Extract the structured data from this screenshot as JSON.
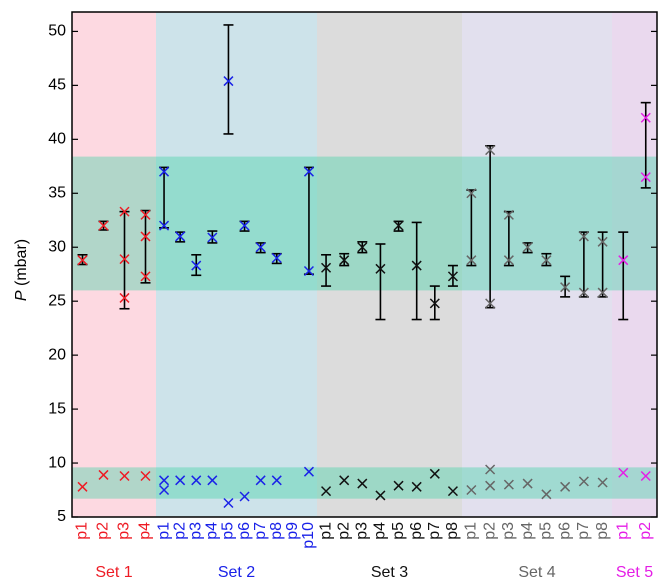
{
  "chart_data": {
    "type": "scatter",
    "ylabel_symbol": "P",
    "ylabel_unit": "(mbar)",
    "ylim": [
      5,
      51.8
    ],
    "yticks": [
      5,
      10,
      15,
      20,
      25,
      30,
      35,
      40,
      45,
      50
    ],
    "bands": [
      {
        "range": [
          26,
          38.4
        ]
      },
      {
        "range": [
          6.7,
          9.6
        ]
      }
    ],
    "band_color": "#3fd1a6",
    "errorbar_color": "#000000",
    "groups": [
      {
        "label": "Set 1",
        "color": "#ee1c25",
        "background": "#fdd9e1",
        "items": [
          {
            "label": "p1",
            "points": [
              28.8
            ],
            "err": [
              28.4,
              29.3
            ],
            "low": [
              7.8
            ]
          },
          {
            "label": "p2",
            "points": [
              32
            ],
            "err": [
              31.6,
              32.4
            ],
            "low": [
              8.9
            ]
          },
          {
            "label": "p3",
            "points": [
              33.3,
              28.9,
              25.3
            ],
            "err": [
              24.3,
              33.3
            ],
            "low": [
              8.8
            ]
          },
          {
            "label": "p4",
            "points": [
              33,
              31,
              27.3
            ],
            "err": [
              26.7,
              33.4
            ],
            "low": [
              8.8
            ]
          }
        ]
      },
      {
        "label": "Set 2",
        "color": "#1a22e8",
        "background": "#cde3ea",
        "items": [
          {
            "label": "p1",
            "points": [
              37,
              32
            ],
            "err": [
              31.8,
              37.4
            ],
            "low": [
              8.4,
              7.5
            ]
          },
          {
            "label": "p2",
            "points": [
              31
            ],
            "err": [
              30.5,
              31.4
            ],
            "low": [
              8.4
            ]
          },
          {
            "label": "p3",
            "points": [
              28.3
            ],
            "err": [
              27.4,
              29.3
            ],
            "low": [
              8.4
            ]
          },
          {
            "label": "p4",
            "points": [
              30.9
            ],
            "err": [
              30.4,
              31.5
            ],
            "low": [
              8.4
            ]
          },
          {
            "label": "p5",
            "points": [
              45.4
            ],
            "err": [
              40.5,
              50.6
            ],
            "low": [
              6.3
            ]
          },
          {
            "label": "p6",
            "points": [
              32
            ],
            "err": [
              31.5,
              32.4
            ],
            "low": [
              6.9
            ]
          },
          {
            "label": "p7",
            "points": [
              30
            ],
            "err": [
              29.5,
              30.4
            ],
            "low": [
              8.4
            ]
          },
          {
            "label": "p8",
            "points": [
              29
            ],
            "err": [
              28.5,
              29.4
            ],
            "low": [
              8.4
            ]
          },
          {
            "label": "p9",
            "points": [],
            "low": []
          },
          {
            "label": "p10",
            "points": [
              37,
              27.8
            ],
            "err": [
              27.5,
              37.4
            ],
            "low": [
              9.2
            ]
          }
        ]
      },
      {
        "label": "Set 3",
        "color": "#111111",
        "background": "#dcdcdc",
        "items": [
          {
            "label": "p1",
            "points": [
              28.1
            ],
            "err": [
              26.4,
              29.3
            ],
            "low": [
              7.4
            ]
          },
          {
            "label": "p2",
            "points": [
              28.8
            ],
            "err": [
              28.3,
              29.4
            ],
            "low": [
              8.4
            ]
          },
          {
            "label": "p3",
            "points": [
              30
            ],
            "err": [
              29.5,
              30.5
            ],
            "low": [
              8.1
            ]
          },
          {
            "label": "p4",
            "points": [
              28
            ],
            "err": [
              23.3,
              30.3
            ],
            "low": [
              7.0
            ]
          },
          {
            "label": "p5",
            "points": [
              32
            ],
            "err": [
              31.5,
              32.4
            ],
            "low": [
              7.9
            ]
          },
          {
            "label": "p6",
            "points": [
              28.3
            ],
            "err": [
              23.3,
              32.3
            ],
            "low": [
              7.8
            ]
          },
          {
            "label": "p7",
            "points": [
              24.8
            ],
            "err": [
              23.3,
              26.4
            ],
            "low": [
              9.0
            ]
          },
          {
            "label": "p8",
            "points": [
              27.3
            ],
            "err": [
              26.4,
              28.3
            ],
            "low": [
              7.4
            ]
          }
        ]
      },
      {
        "label": "Set 4",
        "color": "#666666",
        "background": "#e2e0ee",
        "items": [
          {
            "label": "p1",
            "points": [
              35,
              28.8
            ],
            "err": [
              28.3,
              35.3
            ],
            "low": [
              7.5
            ]
          },
          {
            "label": "p2",
            "points": [
              39,
              24.8
            ],
            "err": [
              24.4,
              39.4
            ],
            "low": [
              7.9,
              9.4
            ]
          },
          {
            "label": "p3",
            "points": [
              33,
              28.8
            ],
            "err": [
              28.3,
              33.3
            ],
            "low": [
              8.0
            ]
          },
          {
            "label": "p4",
            "points": [
              30
            ],
            "err": [
              29.5,
              30.4
            ],
            "low": [
              8.1
            ]
          },
          {
            "label": "p5",
            "points": [
              28.8
            ],
            "err": [
              28.3,
              29.4
            ],
            "low": [
              7.1
            ]
          },
          {
            "label": "p6",
            "points": [
              26.3
            ],
            "err": [
              25.4,
              27.3
            ],
            "low": [
              7.8
            ]
          },
          {
            "label": "p7",
            "points": [
              31,
              25.8
            ],
            "err": [
              25.4,
              31.4
            ],
            "low": [
              8.3
            ]
          },
          {
            "label": "p8",
            "points": [
              30.5,
              25.8
            ],
            "err": [
              25.4,
              31.4
            ],
            "low": [
              8.2
            ]
          }
        ]
      },
      {
        "label": "Set 5",
        "color": "#e51ee6",
        "background": "#ead9ee",
        "items": [
          {
            "label": "p1",
            "points": [
              28.8
            ],
            "err": [
              23.3,
              31.4
            ],
            "low": [
              9.1
            ]
          },
          {
            "label": "p2",
            "points": [
              42,
              36.5
            ],
            "err": [
              35.5,
              43.4
            ],
            "low": [
              8.8
            ]
          }
        ]
      }
    ]
  }
}
